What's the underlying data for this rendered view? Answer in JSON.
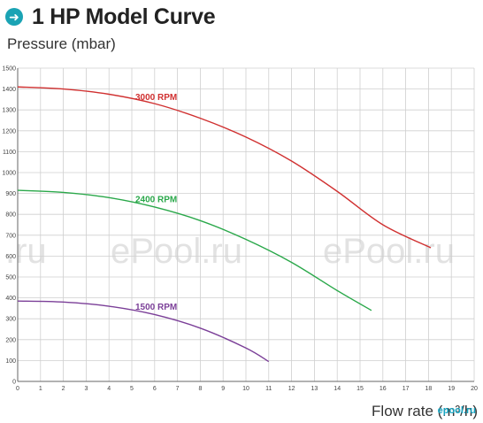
{
  "header": {
    "title": "1 HP Model Curve",
    "icon": "arrow-right-circle-icon",
    "icon_color": "#1aa3b4"
  },
  "watermarks": [
    "ePool.ru",
    "ePool.ru",
    ".ru",
    "epool.ru"
  ],
  "chart_data": {
    "type": "line",
    "title": "1 HP Model Curve",
    "ylabel": "Pressure (mbar)",
    "xlabel": "Flow rate (m³/h)",
    "xlim": [
      0,
      20
    ],
    "ylim": [
      0,
      1500
    ],
    "xticks": [
      0,
      1,
      2,
      3,
      4,
      5,
      6,
      7,
      8,
      9,
      10,
      11,
      12,
      13,
      14,
      15,
      16,
      17,
      18,
      19,
      20
    ],
    "yticks": [
      0,
      100,
      200,
      300,
      400,
      500,
      600,
      700,
      800,
      900,
      1000,
      1100,
      1200,
      1300,
      1400,
      1500
    ],
    "grid": true,
    "series": [
      {
        "name": "3000 RPM",
        "color": "#d03030",
        "x": [
          0,
          2,
          4,
          6,
          8,
          10,
          12,
          14,
          16,
          18.1
        ],
        "y": [
          1410,
          1400,
          1375,
          1330,
          1260,
          1170,
          1055,
          910,
          750,
          640
        ]
      },
      {
        "name": "2400 RPM",
        "color": "#2aa84a",
        "x": [
          0,
          2,
          4,
          6,
          8,
          10,
          12,
          14,
          15.5
        ],
        "y": [
          915,
          905,
          880,
          835,
          770,
          680,
          570,
          435,
          340
        ]
      },
      {
        "name": "1500 RPM",
        "color": "#7b3f98",
        "x": [
          0,
          2,
          4,
          6,
          8,
          10,
          11
        ],
        "y": [
          385,
          380,
          360,
          320,
          255,
          160,
          95
        ]
      }
    ],
    "annotations": [
      {
        "text": "3000 RPM",
        "x": 5.0,
        "y": 1360,
        "color": "#d03030"
      },
      {
        "text": "2400 RPM",
        "x": 5.0,
        "y": 870,
        "color": "#2aa84a"
      },
      {
        "text": "1500 RPM",
        "x": 5.0,
        "y": 355,
        "color": "#7b3f98"
      }
    ]
  }
}
